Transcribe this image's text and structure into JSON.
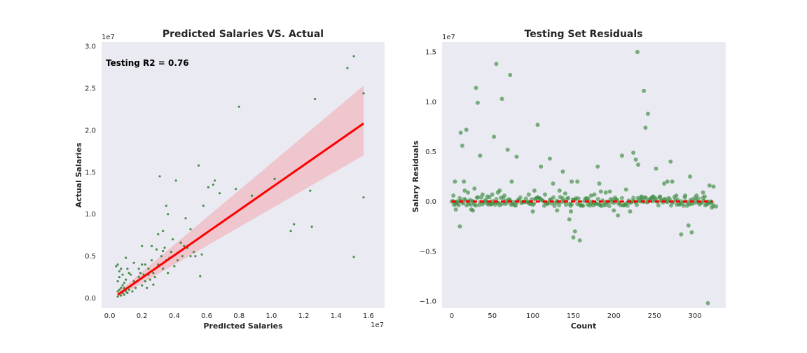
{
  "chart_data": [
    {
      "type": "scatter",
      "title": "Predicted Salaries VS. Actual",
      "xlabel": "Predicted Salaries",
      "ylabel": "Actual Salaries",
      "x_offset_label": "1e7",
      "y_offset_label": "1e7",
      "xlim": [
        -0.05,
        1.7
      ],
      "ylim": [
        -0.12,
        3.05
      ],
      "xticks": [
        0.0,
        0.2,
        0.4,
        0.6,
        0.8,
        1.0,
        1.2,
        1.4,
        1.6
      ],
      "xtick_labels": [
        "0.0",
        "0.2",
        "0.4",
        "0.6",
        "0.8",
        "1.0",
        "1.2",
        "1.4",
        "1.6"
      ],
      "yticks": [
        0.0,
        0.5,
        1.0,
        1.5,
        2.0,
        2.5,
        3.0
      ],
      "ytick_labels": [
        "0.0",
        "0.5",
        "1.0",
        "1.5",
        "2.0",
        "2.5",
        "3.0"
      ],
      "annotation": "Testing R2 = 0.76",
      "grid": false,
      "background": "#eaeaf2",
      "point_color": "#2e7d32",
      "line_color": "#ff0000",
      "band_color": "#f0c0c8",
      "regression": {
        "x": [
          0.05,
          1.57
        ],
        "y": [
          0.04,
          2.08
        ],
        "band_lower": [
          0.01,
          1.7
        ],
        "band_upper": [
          0.07,
          2.53
        ]
      },
      "series": [
        {
          "points": [
            [
              0.05,
              0.02
            ],
            [
              0.06,
              0.05
            ],
            [
              0.07,
              0.03
            ],
            [
              0.05,
              0.08
            ],
            [
              0.08,
              0.06
            ],
            [
              0.06,
              0.1
            ],
            [
              0.09,
              0.04
            ],
            [
              0.1,
              0.08
            ],
            [
              0.07,
              0.12
            ],
            [
              0.08,
              0.15
            ],
            [
              0.11,
              0.06
            ],
            [
              0.12,
              0.1
            ],
            [
              0.05,
              0.2
            ],
            [
              0.06,
              0.25
            ],
            [
              0.09,
              0.18
            ],
            [
              0.1,
              0.22
            ],
            [
              0.13,
              0.14
            ],
            [
              0.14,
              0.08
            ],
            [
              0.15,
              0.2
            ],
            [
              0.12,
              0.3
            ],
            [
              0.16,
              0.12
            ],
            [
              0.07,
              0.35
            ],
            [
              0.05,
              0.4
            ],
            [
              0.06,
              0.32
            ],
            [
              0.08,
              0.28
            ],
            [
              0.11,
              0.35
            ],
            [
              0.17,
              0.2
            ],
            [
              0.18,
              0.25
            ],
            [
              0.2,
              0.15
            ],
            [
              0.19,
              0.3
            ],
            [
              0.22,
              0.2
            ],
            [
              0.21,
              0.28
            ],
            [
              0.23,
              0.12
            ],
            [
              0.24,
              0.35
            ],
            [
              0.25,
              0.22
            ],
            [
              0.2,
              0.4
            ],
            [
              0.22,
              0.4
            ],
            [
              0.26,
              0.45
            ],
            [
              0.27,
              0.3
            ],
            [
              0.28,
              0.25
            ],
            [
              0.3,
              0.4
            ],
            [
              0.32,
              0.5
            ],
            [
              0.33,
              0.35
            ],
            [
              0.34,
              0.6
            ],
            [
              0.35,
              0.45
            ],
            [
              0.36,
              0.3
            ],
            [
              0.37,
              0.48
            ],
            [
              0.38,
              0.55
            ],
            [
              0.3,
              0.76
            ],
            [
              0.33,
              0.8
            ],
            [
              0.36,
              1.0
            ],
            [
              0.35,
              1.1
            ],
            [
              0.31,
              1.45
            ],
            [
              0.41,
              1.4
            ],
            [
              0.47,
              0.95
            ],
            [
              0.48,
              0.6
            ],
            [
              0.45,
              0.5
            ],
            [
              0.5,
              0.5
            ],
            [
              0.52,
              0.55
            ],
            [
              0.53,
              0.5
            ],
            [
              0.55,
              1.58
            ],
            [
              0.58,
              1.1
            ],
            [
              0.61,
              1.32
            ],
            [
              0.64,
              1.35
            ],
            [
              0.65,
              1.4
            ],
            [
              0.68,
              1.25
            ],
            [
              0.56,
              0.26
            ],
            [
              0.57,
              0.52
            ],
            [
              0.78,
              1.3
            ],
            [
              0.8,
              2.28
            ],
            [
              0.88,
              1.22
            ],
            [
              1.02,
              1.42
            ],
            [
              1.12,
              0.8
            ],
            [
              1.14,
              0.88
            ],
            [
              1.24,
              1.28
            ],
            [
              1.25,
              0.85
            ],
            [
              1.27,
              2.37
            ],
            [
              1.47,
              2.74
            ],
            [
              1.51,
              2.88
            ],
            [
              1.51,
              0.49
            ],
            [
              1.57,
              2.44
            ],
            [
              1.57,
              1.2
            ],
            [
              0.44,
              0.66
            ],
            [
              0.42,
              0.45
            ],
            [
              0.4,
              0.38
            ],
            [
              0.29,
              0.58
            ],
            [
              0.26,
              0.62
            ],
            [
              0.15,
              0.42
            ],
            [
              0.1,
              0.48
            ],
            [
              0.04,
              0.38
            ],
            [
              0.09,
              0.12
            ],
            [
              0.13,
              0.28
            ],
            [
              0.18,
              0.35
            ],
            [
              0.24,
              0.28
            ],
            [
              0.27,
              0.16
            ],
            [
              0.39,
              0.7
            ],
            [
              0.46,
              0.62
            ],
            [
              0.5,
              0.82
            ],
            [
              0.2,
              0.62
            ],
            [
              0.33,
              0.56
            ]
          ]
        }
      ]
    },
    {
      "type": "scatter",
      "title": "Testing Set Residuals",
      "xlabel": "Count",
      "ylabel": "Salary Residuals",
      "y_offset_label": "1e7",
      "xlim": [
        -12,
        338
      ],
      "ylim": [
        -1.07,
        1.6
      ],
      "xticks": [
        0,
        50,
        100,
        150,
        200,
        250,
        300
      ],
      "xtick_labels": [
        "0",
        "50",
        "100",
        "150",
        "200",
        "250",
        "300"
      ],
      "yticks": [
        -1.0,
        -0.5,
        0.0,
        0.5,
        1.0,
        1.5
      ],
      "ytick_labels": [
        "−1.0",
        "−0.5",
        "0.0",
        "0.5",
        "1.0",
        "1.5"
      ],
      "grid": false,
      "background": "#eaeaf2",
      "point_color": "#3a8a3e",
      "zero_line_color": "#ff0000",
      "zero_line": {
        "x": [
          0,
          322
        ],
        "y": 0.0
      },
      "series": [
        {
          "outliers": [
            [
              2,
              0.06
            ],
            [
              4,
              0.2
            ],
            [
              5,
              -0.08
            ],
            [
              7,
              -0.02
            ],
            [
              10,
              -0.25
            ],
            [
              11,
              0.69
            ],
            [
              13,
              0.56
            ],
            [
              15,
              0.2
            ],
            [
              16,
              0.11
            ],
            [
              18,
              0.72
            ],
            [
              20,
              0.09
            ],
            [
              24,
              -0.08
            ],
            [
              26,
              -0.09
            ],
            [
              28,
              0.13
            ],
            [
              30,
              1.14
            ],
            [
              32,
              0.99
            ],
            [
              35,
              0.46
            ],
            [
              38,
              0.07
            ],
            [
              44,
              0.05
            ],
            [
              48,
              -0.03
            ],
            [
              50,
              0.07
            ],
            [
              52,
              0.65
            ],
            [
              55,
              1.38
            ],
            [
              57,
              0.09
            ],
            [
              59,
              0.11
            ],
            [
              62,
              1.03
            ],
            [
              65,
              0.06
            ],
            [
              69,
              0.52
            ],
            [
              72,
              1.27
            ],
            [
              74,
              0.2
            ],
            [
              80,
              0.45
            ],
            [
              95,
              0.07
            ],
            [
              100,
              -0.1
            ],
            [
              102,
              0.11
            ],
            [
              106,
              0.77
            ],
            [
              110,
              0.35
            ],
            [
              115,
              0.07
            ],
            [
              121,
              0.43
            ],
            [
              125,
              0.18
            ],
            [
              130,
              -0.09
            ],
            [
              133,
              0.11
            ],
            [
              137,
              0.3
            ],
            [
              140,
              0.08
            ],
            [
              145,
              -0.18
            ],
            [
              147,
              -0.1
            ],
            [
              148,
              0.2
            ],
            [
              150,
              -0.36
            ],
            [
              152,
              -0.3
            ],
            [
              155,
              0.2
            ],
            [
              158,
              -0.39
            ],
            [
              168,
              0.03
            ],
            [
              172,
              0.06
            ],
            [
              176,
              0.07
            ],
            [
              180,
              0.35
            ],
            [
              182,
              0.18
            ],
            [
              184,
              0.1
            ],
            [
              190,
              0.09
            ],
            [
              195,
              0.1
            ],
            [
              200,
              -0.09
            ],
            [
              205,
              -0.14
            ],
            [
              210,
              0.46
            ],
            [
              215,
              0.12
            ],
            [
              220,
              -0.1
            ],
            [
              224,
              0.49
            ],
            [
              227,
              0.42
            ],
            [
              229,
              1.5
            ],
            [
              230,
              0.37
            ],
            [
              234,
              0.05
            ],
            [
              237,
              1.11
            ],
            [
              239,
              0.74
            ],
            [
              242,
              0.88
            ],
            [
              248,
              0.05
            ],
            [
              252,
              0.33
            ],
            [
              257,
              0.05
            ],
            [
              262,
              0.18
            ],
            [
              266,
              0.2
            ],
            [
              270,
              0.4
            ],
            [
              272,
              0.2
            ],
            [
              277,
              0.06
            ],
            [
              283,
              -0.33
            ],
            [
              288,
              0.06
            ],
            [
              292,
              -0.24
            ],
            [
              294,
              0.25
            ],
            [
              296,
              -0.31
            ],
            [
              302,
              0.06
            ],
            [
              310,
              0.09
            ],
            [
              312,
              0.05
            ],
            [
              316,
              -1.02
            ],
            [
              318,
              0.16
            ],
            [
              321,
              -0.06
            ],
            [
              323,
              0.15
            ],
            [
              326,
              -0.05
            ]
          ],
          "near_zero_count": 230,
          "near_zero_spread": 0.045
        }
      ]
    }
  ]
}
